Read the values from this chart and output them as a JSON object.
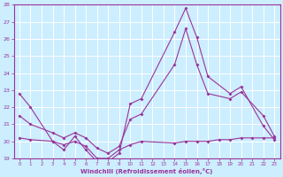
{
  "xlabel": "Windchill (Refroidissement éolien,°C)",
  "background_color": "#cceeff",
  "grid_color": "#aaddcc",
  "line_color": "#993399",
  "ylim": [
    19,
    28
  ],
  "yticks": [
    19,
    20,
    21,
    22,
    23,
    24,
    25,
    26,
    27,
    28
  ],
  "xtick_labels": [
    "0",
    "1",
    "2",
    "3",
    "4",
    "5",
    "6",
    "7",
    "8",
    "9",
    "10",
    "11",
    "12",
    "13",
    "14",
    "15",
    "16",
    "17",
    "18",
    "19",
    "20",
    "21",
    "22",
    "23"
  ],
  "line1_x": [
    0,
    1,
    3,
    4,
    5,
    6,
    7,
    8,
    9,
    10,
    11,
    14,
    15,
    16,
    17,
    19,
    20,
    22,
    23
  ],
  "line1_y": [
    22.8,
    22.0,
    20.0,
    19.5,
    20.3,
    19.5,
    18.8,
    18.8,
    19.3,
    22.2,
    22.5,
    26.4,
    27.8,
    26.1,
    23.8,
    22.8,
    23.2,
    20.9,
    20.1
  ],
  "line2_x": [
    0,
    1,
    3,
    4,
    5,
    6,
    7,
    8,
    9,
    10,
    11,
    14,
    15,
    16,
    17,
    19,
    20,
    22,
    23
  ],
  "line2_y": [
    21.5,
    21.0,
    20.5,
    20.2,
    20.5,
    20.2,
    19.6,
    19.3,
    19.7,
    21.3,
    21.6,
    24.5,
    26.6,
    24.5,
    22.8,
    22.5,
    22.9,
    21.5,
    20.3
  ],
  "line3_x": [
    0,
    1,
    3,
    4,
    5,
    6,
    7,
    8,
    9,
    10,
    11,
    14,
    15,
    16,
    17,
    18,
    19,
    20,
    21,
    22,
    23
  ],
  "line3_y": [
    20.2,
    20.1,
    20.0,
    19.8,
    20.0,
    19.7,
    19.0,
    19.0,
    19.5,
    19.8,
    20.0,
    19.9,
    20.0,
    20.0,
    20.0,
    20.1,
    20.1,
    20.2,
    20.2,
    20.2,
    20.2
  ]
}
